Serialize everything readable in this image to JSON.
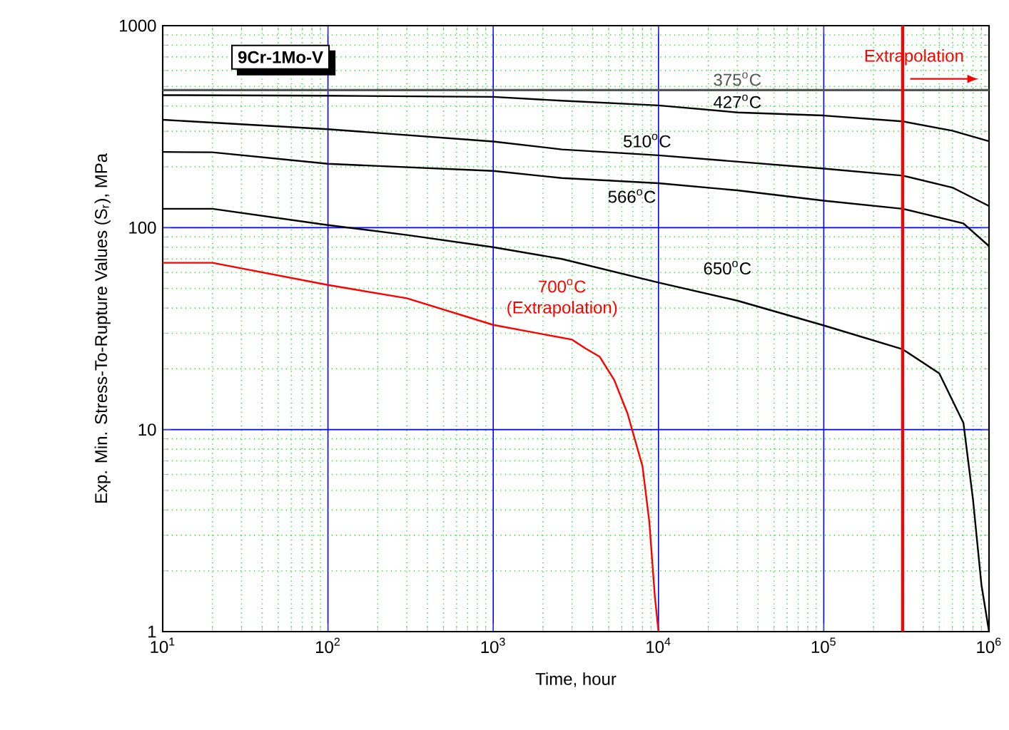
{
  "chart_data": {
    "type": "line",
    "title": "9Cr-1Mo-V",
    "xlabel": "Time, hour",
    "ylabel": "Exp. Min. Stress-To-Rupture Values (S$_{r}$), MPa",
    "log": "xy",
    "grid": true,
    "marker": "none",
    "line_style": "solid",
    "xlim": [
      10,
      1000000
    ],
    "ylim": [
      1,
      1000
    ],
    "xticks": [
      {
        "value": 10,
        "label": "10$^{1}$"
      },
      {
        "value": 20,
        "label": null
      },
      {
        "value": 30,
        "label": null
      },
      {
        "value": 40,
        "label": null
      },
      {
        "value": 50,
        "label": null
      },
      {
        "value": 60,
        "label": null
      },
      {
        "value": 70,
        "label": null
      },
      {
        "value": 80,
        "label": null
      },
      {
        "value": 90,
        "label": null
      },
      {
        "value": 100,
        "label": "10$^{2}$"
      },
      {
        "value": 200,
        "label": null
      },
      {
        "value": 300,
        "label": null
      },
      {
        "value": 400,
        "label": null
      },
      {
        "value": 500,
        "label": null
      },
      {
        "value": 600,
        "label": null
      },
      {
        "value": 700,
        "label": null
      },
      {
        "value": 800,
        "label": null
      },
      {
        "value": 900,
        "label": null
      },
      {
        "value": 1000,
        "label": "10$^{3}$"
      },
      {
        "value": 2000,
        "label": null
      },
      {
        "value": 3000,
        "label": null
      },
      {
        "value": 4000,
        "label": null
      },
      {
        "value": 5000,
        "label": null
      },
      {
        "value": 6000,
        "label": null
      },
      {
        "value": 7000,
        "label": null
      },
      {
        "value": 8000,
        "label": null
      },
      {
        "value": 9000,
        "label": null
      },
      {
        "value": 10000,
        "label": "10$^{4}$"
      },
      {
        "value": 20000,
        "label": null
      },
      {
        "value": 30000,
        "label": null
      },
      {
        "value": 40000,
        "label": null
      },
      {
        "value": 50000,
        "label": null
      },
      {
        "value": 60000,
        "label": null
      },
      {
        "value": 70000,
        "label": null
      },
      {
        "value": 80000,
        "label": null
      },
      {
        "value": 90000,
        "label": null
      },
      {
        "value": 100000,
        "label": "10$^{5}$"
      },
      {
        "value": 200000,
        "label": null
      },
      {
        "value": 300000,
        "label": null
      },
      {
        "value": 400000,
        "label": null
      },
      {
        "value": 500000,
        "label": null
      },
      {
        "value": 600000,
        "label": null
      },
      {
        "value": 700000,
        "label": null
      },
      {
        "value": 800000,
        "label": null
      },
      {
        "value": 900000,
        "label": null
      },
      {
        "value": 1000000,
        "label": "10$^{6}$"
      }
    ],
    "yticks": [
      1,
      {
        "value": 2,
        "label": null
      },
      {
        "value": 3,
        "label": null
      },
      {
        "value": 4,
        "label": null
      },
      {
        "value": 5,
        "label": null
      },
      {
        "value": 6,
        "label": null
      },
      {
        "value": 7,
        "label": null
      },
      {
        "value": 8,
        "label": null
      },
      {
        "value": 9,
        "label": null
      },
      10,
      {
        "value": 20,
        "label": null
      },
      {
        "value": 30,
        "label": null
      },
      {
        "value": 40,
        "label": null
      },
      {
        "value": 50,
        "label": null
      },
      {
        "value": 60,
        "label": null
      },
      {
        "value": 70,
        "label": null
      },
      {
        "value": 80,
        "label": null
      },
      {
        "value": 90,
        "label": null
      },
      100,
      {
        "value": 200,
        "label": null
      },
      {
        "value": 300,
        "label": null
      },
      {
        "value": 400,
        "label": null
      },
      {
        "value": 500,
        "label": null
      },
      {
        "value": 600,
        "label": null
      },
      {
        "value": 700,
        "label": null
      },
      {
        "value": 800,
        "label": null
      },
      {
        "value": 900,
        "label": null
      },
      1000
    ],
    "ref_lines": [
      {
        "axis": "x",
        "value": 300000,
        "label": "Extrapolation",
        "color": "#ff0000",
        "line_style": "solid"
      }
    ],
    "series": [
      {
        "name": "375$^{o}$C",
        "color": "#555555",
        "x": [
          10,
          1000,
          10000,
          30000,
          100000,
          1000000
        ],
        "values": [
          480,
          480,
          480,
          480,
          480,
          480
        ]
      },
      {
        "name": "427$^{o}$C",
        "color": "#000000",
        "x": [
          10,
          100,
          1000,
          2600,
          10000,
          30000,
          100000,
          300000,
          600000,
          1000000
        ],
        "values": [
          453,
          450,
          444,
          425,
          403,
          372,
          359,
          336,
          302,
          268
        ]
      },
      {
        "name": "510$^{o}$C",
        "color": "#000000",
        "x": [
          10,
          100,
          1000,
          2600,
          10000,
          100000,
          300000,
          600000,
          1000000
        ],
        "values": [
          342,
          307,
          267,
          244,
          228,
          196,
          181,
          158,
          128
        ]
      },
      {
        "name": "566$^{o}$C",
        "color": "#000000",
        "x": [
          10,
          20,
          100,
          1000,
          2600,
          10000,
          30000,
          100000,
          300000,
          700000,
          1000000
        ],
        "values": [
          237,
          236,
          207,
          191,
          176,
          166,
          153,
          136,
          124,
          105,
          81
        ]
      },
      {
        "name": "650$^{o}$C",
        "color": "#000000",
        "x": [
          10,
          20,
          100,
          300,
          1000,
          2600,
          10000,
          30000,
          100000,
          300000,
          500000,
          700000,
          800000,
          900000,
          1000000
        ],
        "values": [
          124,
          124,
          103,
          92,
          80,
          70,
          53.5,
          43.5,
          32.8,
          25,
          19,
          10.8,
          4.5,
          1.7,
          1
        ]
      },
      {
        "name": "700$^{o}$C (Extrapolation)",
        "color": "#ff0000",
        "x": [
          10,
          20,
          100,
          300,
          1000,
          3000,
          3600,
          4400,
          5400,
          6500,
          8000,
          8800,
          9500,
          10000
        ],
        "values": [
          67,
          67,
          52,
          44.7,
          33,
          27.9,
          25.3,
          23,
          17.6,
          12,
          6.6,
          3.5,
          1.5,
          1
        ]
      }
    ]
  }
}
